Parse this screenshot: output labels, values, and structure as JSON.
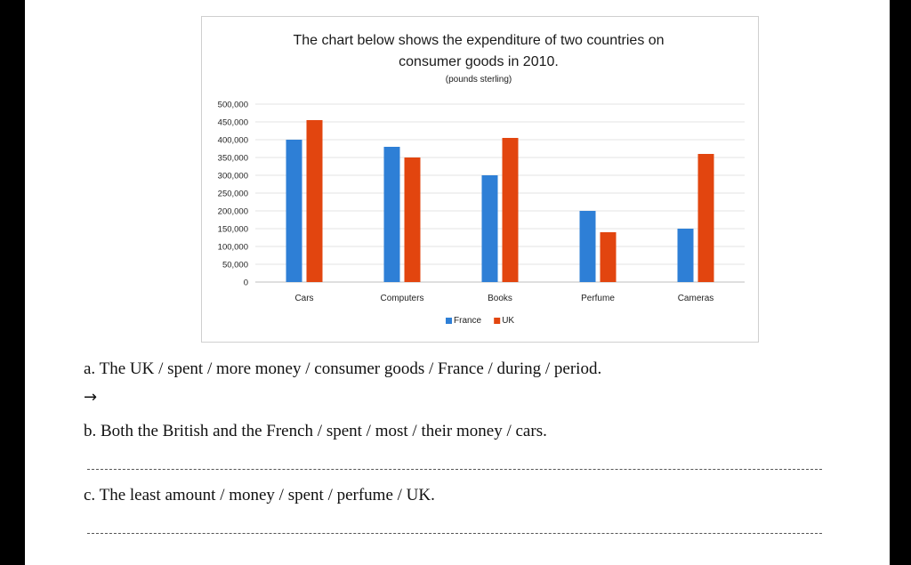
{
  "chart_data": {
    "type": "bar",
    "title_line1": "The chart below shows the expenditure of two countries on",
    "title_line2": "consumer goods in 2010.",
    "subtitle": "(pounds sterling)",
    "categories": [
      "Cars",
      "Computers",
      "Books",
      "Perfume",
      "Cameras"
    ],
    "series": [
      {
        "name": "France",
        "color": "#2e7fd6",
        "values": [
          400000,
          380000,
          300000,
          200000,
          150000
        ]
      },
      {
        "name": "UK",
        "color": "#e2450f",
        "values": [
          455000,
          350000,
          405000,
          140000,
          360000
        ]
      }
    ],
    "ylim": [
      0,
      500000
    ],
    "yticks": [
      "0",
      "50,000",
      "100,000",
      "150,000",
      "200,000",
      "250,000",
      "300,000",
      "350,000",
      "400,000",
      "450,000",
      "500,000"
    ],
    "grid": true,
    "legend_position": "bottom"
  },
  "exercise": {
    "a": "a. The UK / spent / more money / consumer goods / France / during / period.",
    "arrow": "→",
    "b": "b. Both the British and the French / spent / most / their money / cars.",
    "c": "c. The least amount / money / spent / perfume / UK."
  }
}
